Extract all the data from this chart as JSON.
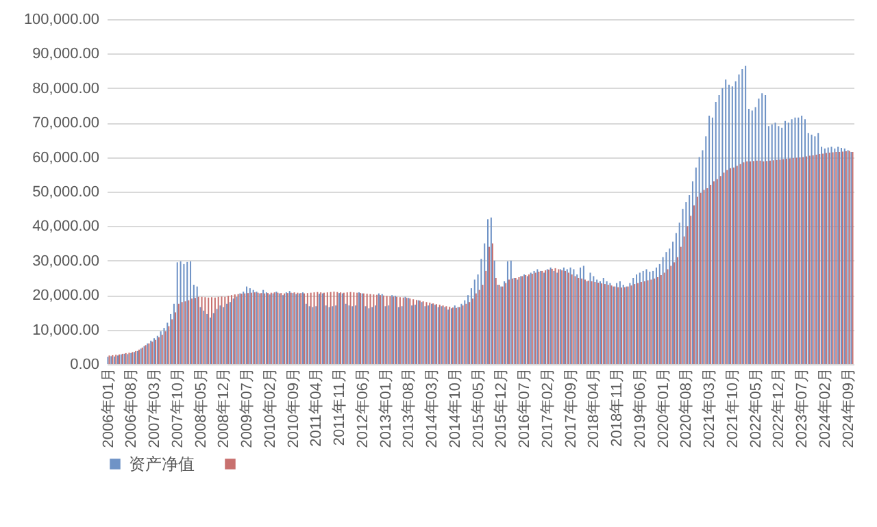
{
  "chart_data": {
    "type": "bar",
    "categories": [
      "2006年01月",
      null,
      null,
      null,
      null,
      null,
      null,
      "2006年08月",
      null,
      null,
      null,
      null,
      null,
      null,
      "2007年03月",
      null,
      null,
      null,
      null,
      null,
      null,
      "2007年10月",
      null,
      null,
      null,
      null,
      null,
      null,
      "2008年05月",
      null,
      null,
      null,
      null,
      null,
      null,
      "2008年12月",
      null,
      null,
      null,
      null,
      null,
      null,
      "2009年07月",
      null,
      null,
      null,
      null,
      null,
      null,
      "2010年02月",
      null,
      null,
      null,
      null,
      null,
      null,
      "2010年09月",
      null,
      null,
      null,
      null,
      null,
      null,
      "2011年04月",
      null,
      null,
      null,
      null,
      null,
      null,
      "2011年11月",
      null,
      null,
      null,
      null,
      null,
      null,
      "2012年06月",
      null,
      null,
      null,
      null,
      null,
      null,
      "2013年01月",
      null,
      null,
      null,
      null,
      null,
      null,
      "2013年08月",
      null,
      null,
      null,
      null,
      null,
      null,
      "2014年03月",
      null,
      null,
      null,
      null,
      null,
      null,
      "2014年10月",
      null,
      null,
      null,
      null,
      null,
      null,
      "2015年05月",
      null,
      null,
      null,
      null,
      null,
      null,
      "2015年12月",
      null,
      null,
      null,
      null,
      null,
      null,
      "2016年07月",
      null,
      null,
      null,
      null,
      null,
      null,
      "2017年02月",
      null,
      null,
      null,
      null,
      null,
      null,
      "2017年09月",
      null,
      null,
      null,
      null,
      null,
      null,
      "2018年04月",
      null,
      null,
      null,
      null,
      null,
      null,
      "2018年11月",
      null,
      null,
      null,
      null,
      null,
      null,
      "2019年06月",
      null,
      null,
      null,
      null,
      null,
      null,
      "2020年01月",
      null,
      null,
      null,
      null,
      null,
      null,
      "2020年08月",
      null,
      null,
      null,
      null,
      null,
      null,
      "2021年03月",
      null,
      null,
      null,
      null,
      null,
      null,
      "2021年10月",
      null,
      null,
      null,
      null,
      null,
      null,
      "2022年05月",
      null,
      null,
      null,
      null,
      null,
      null,
      "2022年12月",
      null,
      null,
      null,
      null,
      null,
      null,
      "2023年07月",
      null,
      null,
      null,
      null,
      null,
      null,
      "2024年02月",
      null,
      null,
      null,
      null,
      null,
      null,
      "2024年09月",
      null
    ],
    "series": [
      {
        "name": "资产净值",
        "color": "#6f93c6",
        "values": [
          2100,
          2300,
          2200,
          2500,
          2800,
          3000,
          2900,
          3200,
          3500,
          3800,
          4500,
          5200,
          6000,
          6800,
          7500,
          8200,
          9500,
          10500,
          12000,
          14500,
          17500,
          29500,
          29800,
          29000,
          29600,
          29800,
          23000,
          22500,
          16500,
          15500,
          14500,
          13500,
          14800,
          16000,
          17000,
          16500,
          17500,
          18000,
          19000,
          19500,
          20500,
          21000,
          22500,
          22000,
          21500,
          21000,
          20500,
          21500,
          20800,
          20200,
          20500,
          21000,
          20500,
          20000,
          20800,
          21200,
          20600,
          20300,
          20500,
          20800,
          17500,
          16800,
          16500,
          16800,
          20400,
          20500,
          17000,
          16500,
          16800,
          17000,
          20600,
          20500,
          17500,
          17000,
          16800,
          17000,
          20800,
          20500,
          16800,
          16200,
          16500,
          17000,
          20500,
          20300,
          16800,
          17000,
          20000,
          19800,
          16500,
          16800,
          19500,
          19200,
          17000,
          17200,
          18500,
          18000,
          16800,
          17000,
          17500,
          17200,
          16500,
          16800,
          16500,
          15800,
          16200,
          17000,
          16500,
          17500,
          18500,
          20000,
          22000,
          24500,
          26000,
          30500,
          35000,
          42000,
          42500,
          30000,
          23000,
          22500,
          24000,
          29800,
          30000,
          25000,
          24500,
          25500,
          26000,
          25500,
          26500,
          27000,
          27500,
          27000,
          26500,
          27500,
          28000,
          27000,
          26500,
          27500,
          28000,
          27500,
          28000,
          27500,
          26000,
          28000,
          28500,
          24000,
          26500,
          25500,
          24500,
          24000,
          25000,
          24000,
          23500,
          22500,
          23500,
          24000,
          23000,
          22500,
          23500,
          25000,
          26000,
          26500,
          27000,
          27500,
          26800,
          27000,
          28000,
          29000,
          31000,
          32500,
          33500,
          35500,
          38000,
          41000,
          45000,
          47000,
          49000,
          53000,
          57000,
          60000,
          62000,
          66000,
          72000,
          71500,
          76000,
          78000,
          80000,
          82500,
          81000,
          80500,
          82000,
          84000,
          85500,
          86500,
          74000,
          73500,
          74500,
          77000,
          78500,
          78000,
          69000,
          69500,
          70000,
          69000,
          68500,
          70500,
          70000,
          71000,
          71500,
          71500,
          72000,
          71000,
          67000,
          66500,
          66000,
          67000,
          63000,
          62500,
          62800,
          63000,
          62500,
          63000,
          62700,
          62500,
          62000,
          61500
        ]
      },
      {
        "color": "#c8706e",
        "values": [
          2500,
          2600,
          2700,
          2800,
          3000,
          3200,
          3300,
          3500,
          3800,
          4200,
          4800,
          5500,
          6000,
          6500,
          7000,
          7800,
          8500,
          9500,
          11000,
          13000,
          15000,
          17500,
          18000,
          18200,
          18500,
          19000,
          19200,
          19500,
          19500,
          19400,
          19300,
          19400,
          19300,
          19500,
          19600,
          19500,
          19800,
          20000,
          20200,
          20300,
          20400,
          20500,
          20600,
          20700,
          20800,
          20700,
          20600,
          20500,
          20600,
          20700,
          20800,
          20700,
          20600,
          20500,
          20600,
          20700,
          20800,
          20700,
          20600,
          20500,
          20600,
          20700,
          20800,
          20900,
          20800,
          20700,
          20800,
          20900,
          21000,
          20900,
          20800,
          20700,
          20800,
          20900,
          20800,
          20700,
          20600,
          20500,
          20400,
          20300,
          20200,
          20100,
          20000,
          19900,
          19800,
          19700,
          19600,
          19500,
          19400,
          19300,
          19200,
          19000,
          18800,
          18600,
          18400,
          18200,
          18000,
          17800,
          17600,
          17400,
          17200,
          17000,
          16800,
          16600,
          16400,
          16300,
          16500,
          17000,
          17500,
          18000,
          19000,
          20500,
          21500,
          23000,
          27000,
          34000,
          35000,
          25000,
          23000,
          22500,
          23500,
          24500,
          24800,
          25000,
          25200,
          25500,
          25800,
          26000,
          26200,
          26500,
          26800,
          27000,
          27200,
          27400,
          27600,
          27800,
          27500,
          27200,
          27000,
          26500,
          26000,
          25500,
          25000,
          24800,
          24500,
          24200,
          24000,
          23800,
          23600,
          23400,
          23200,
          23000,
          22800,
          22500,
          22300,
          22200,
          22300,
          22500,
          22800,
          23200,
          23500,
          23800,
          24000,
          24300,
          24500,
          24800,
          25200,
          25800,
          26500,
          27500,
          28500,
          29500,
          31000,
          34000,
          37000,
          40000,
          43000,
          46000,
          48500,
          49600,
          50500,
          51000,
          52000,
          53000,
          53600,
          54500,
          55500,
          56300,
          56800,
          57000,
          57500,
          58000,
          58500,
          58800,
          58800,
          58900,
          59000,
          59000,
          58800,
          58900,
          59000,
          59100,
          59200,
          59300,
          59400,
          59500,
          59600,
          59700,
          59800,
          59900,
          60000,
          60200,
          60400,
          60500,
          60700,
          60900,
          61000,
          61200,
          61300,
          61400,
          61500,
          61500,
          61600,
          61700,
          61800,
          61500
        ]
      }
    ],
    "ylim": [
      0,
      100000
    ],
    "yticks": [
      {
        "value": 0,
        "label": "0.00"
      },
      {
        "value": 10000,
        "label": "10,000.00"
      },
      {
        "value": 20000,
        "label": "20,000.00"
      },
      {
        "value": 30000,
        "label": "30,000.00"
      },
      {
        "value": 40000,
        "label": "40,000.00"
      },
      {
        "value": 50000,
        "label": "50,000.00"
      },
      {
        "value": 60000,
        "label": "60,000.00"
      },
      {
        "value": 70000,
        "label": "70,000.00"
      },
      {
        "value": 80000,
        "label": "80,000.00"
      },
      {
        "value": 90000,
        "label": "90,000.00"
      },
      {
        "value": 100000,
        "label": "100,000.00"
      }
    ],
    "grid": "y",
    "legend": "bottom"
  }
}
